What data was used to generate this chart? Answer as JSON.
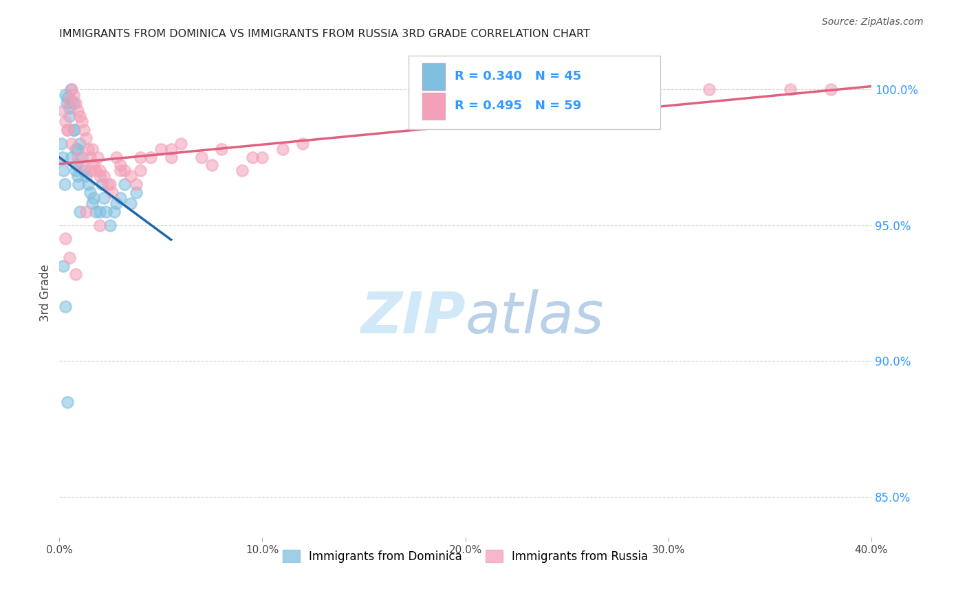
{
  "title": "IMMIGRANTS FROM DOMINICA VS IMMIGRANTS FROM RUSSIA 3RD GRADE CORRELATION CHART",
  "source": "Source: ZipAtlas.com",
  "ylabel": "3rd Grade",
  "xlim": [
    0.0,
    40.0
  ],
  "ylim": [
    83.5,
    101.5
  ],
  "yticks": [
    85.0,
    90.0,
    95.0,
    100.0
  ],
  "ytick_labels": [
    "85.0%",
    "90.0%",
    "95.0%",
    "100.0%"
  ],
  "xticks": [
    0.0,
    10.0,
    20.0,
    30.0,
    40.0
  ],
  "xtick_labels": [
    "0.0%",
    "10.0%",
    "20.0%",
    "30.0%",
    "40.0%"
  ],
  "legend_labels": [
    "Immigrants from Dominica",
    "Immigrants from Russia"
  ],
  "R_dominica": 0.34,
  "N_dominica": 45,
  "R_russia": 0.495,
  "N_russia": 59,
  "color_dominica": "#7fbfdf",
  "color_russia": "#f4a0b8",
  "trendline_color_dominica": "#2166ac",
  "trendline_color_russia": "#e06080",
  "background_color": "#ffffff",
  "title_color": "#222222",
  "tick_color": "#3399ff",
  "grid_color": "#cccccc",
  "watermark_color": "#d0e8f8",
  "dominica_x": [
    0.1,
    0.15,
    0.2,
    0.25,
    0.3,
    0.35,
    0.4,
    0.5,
    0.55,
    0.6,
    0.7,
    0.75,
    0.8,
    0.85,
    0.9,
    0.95,
    1.0,
    1.1,
    1.2,
    1.3,
    1.4,
    1.5,
    1.6,
    1.7,
    1.8,
    2.0,
    2.1,
    2.2,
    2.3,
    2.5,
    2.7,
    2.8,
    3.0,
    3.2,
    3.5,
    3.8,
    0.2,
    0.3,
    0.4,
    0.6,
    0.8,
    1.0,
    0.5,
    0.7,
    0.9
  ],
  "dominica_y": [
    98.0,
    97.5,
    97.0,
    96.5,
    99.8,
    99.5,
    99.7,
    99.3,
    100.0,
    99.6,
    99.5,
    98.5,
    97.8,
    97.2,
    96.8,
    96.5,
    98.0,
    97.5,
    97.0,
    96.8,
    96.5,
    96.2,
    95.8,
    96.0,
    95.5,
    95.5,
    96.5,
    96.0,
    95.5,
    95.0,
    95.5,
    95.8,
    96.0,
    96.5,
    95.8,
    96.2,
    93.5,
    92.0,
    88.5,
    97.5,
    97.0,
    95.5,
    99.0,
    98.5,
    97.8
  ],
  "russia_x": [
    0.2,
    0.3,
    0.4,
    0.5,
    0.6,
    0.7,
    0.8,
    0.9,
    1.0,
    1.1,
    1.2,
    1.3,
    1.4,
    1.5,
    1.6,
    1.7,
    1.8,
    1.9,
    2.0,
    2.2,
    2.4,
    2.6,
    2.8,
    3.0,
    3.2,
    3.5,
    3.8,
    4.0,
    4.5,
    5.0,
    5.5,
    6.0,
    7.0,
    8.0,
    9.0,
    10.0,
    11.0,
    12.0,
    0.4,
    0.6,
    0.9,
    1.1,
    1.5,
    2.0,
    2.5,
    3.0,
    4.0,
    5.5,
    7.5,
    9.5,
    0.3,
    0.5,
    0.8,
    1.3,
    2.0,
    28.0,
    32.0,
    36.0,
    38.0
  ],
  "russia_y": [
    99.2,
    98.8,
    98.5,
    99.6,
    100.0,
    99.8,
    99.5,
    99.2,
    99.0,
    98.8,
    98.5,
    98.2,
    97.8,
    97.5,
    97.8,
    97.2,
    97.0,
    97.5,
    97.0,
    96.8,
    96.5,
    96.2,
    97.5,
    97.2,
    97.0,
    96.8,
    96.5,
    97.0,
    97.5,
    97.8,
    97.5,
    98.0,
    97.5,
    97.8,
    97.0,
    97.5,
    97.8,
    98.0,
    98.5,
    98.0,
    97.5,
    97.2,
    97.0,
    96.8,
    96.5,
    97.0,
    97.5,
    97.8,
    97.2,
    97.5,
    94.5,
    93.8,
    93.2,
    95.5,
    95.0,
    100.0,
    100.0,
    100.0,
    100.0
  ]
}
